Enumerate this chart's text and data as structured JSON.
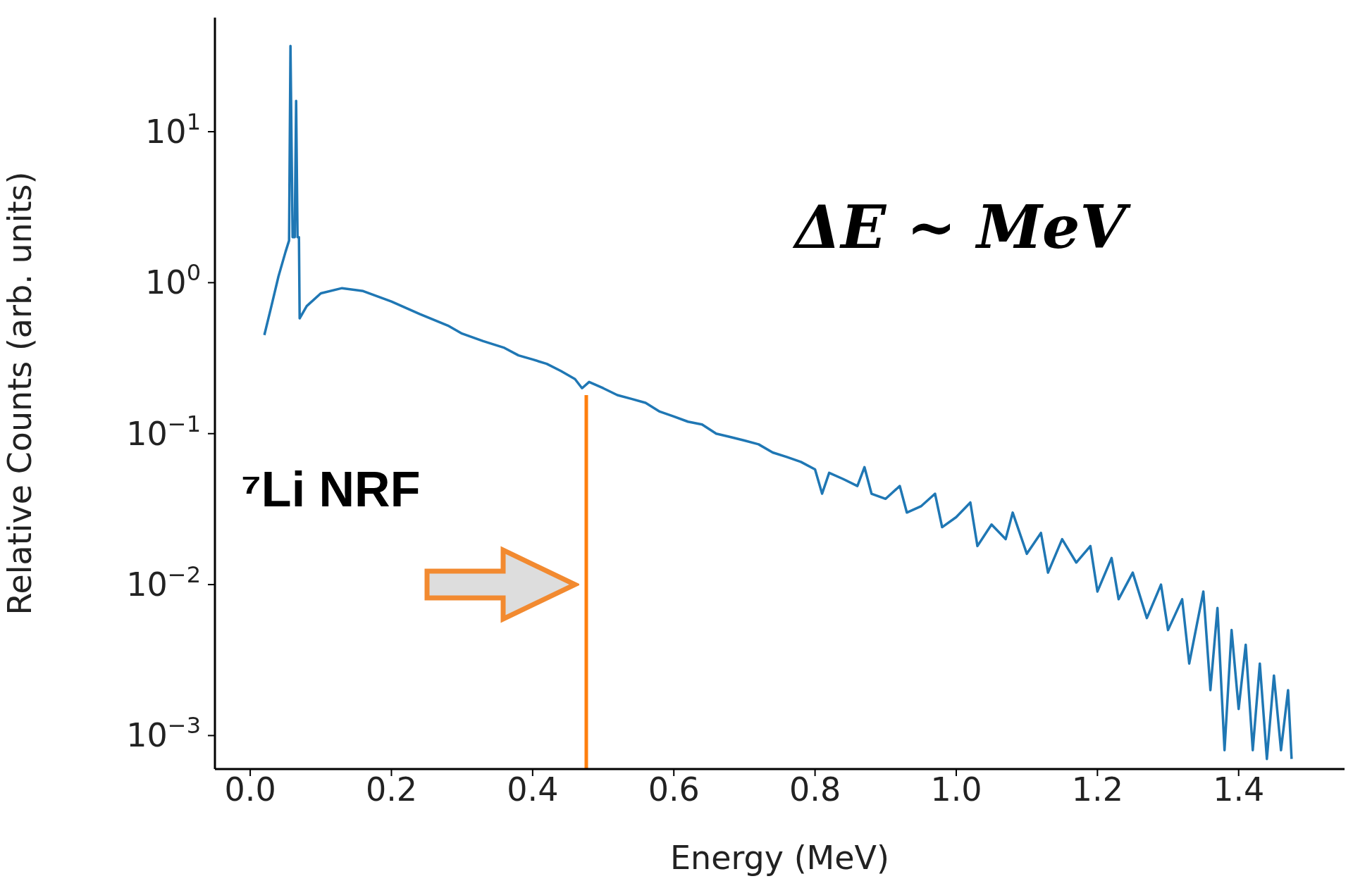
{
  "chart_data": {
    "type": "line",
    "xlabel": "Energy (MeV)",
    "ylabel": "Relative Counts (arb. units)",
    "log": "y",
    "marker": "none",
    "line_style": "solid",
    "xlim": [
      -0.05,
      1.55
    ],
    "ylim": [
      0.0006,
      57
    ],
    "xticks": [
      {
        "value": 0,
        "label": "0.0"
      },
      0.2,
      0.4,
      0.6,
      0.8,
      {
        "value": 1,
        "label": "1.0"
      },
      1.2,
      1.4
    ],
    "yticks": [
      {
        "value": 0.001,
        "label": "10$^{−3}$"
      },
      {
        "value": 0.01,
        "label": "10$^{−2}$"
      },
      {
        "value": 0.1,
        "label": "10$^{−1}$"
      },
      {
        "value": 1,
        "label": "10$^{0}$"
      },
      {
        "value": 10,
        "label": "10$^{1}$"
      }
    ],
    "series": [
      {
        "color": "#1f77b4",
        "x": [
          0.02,
          0.03,
          0.04,
          0.05,
          0.055,
          0.057,
          0.06,
          0.063,
          0.065,
          0.067,
          0.069,
          0.07,
          0.08,
          0.1,
          0.13,
          0.16,
          0.2,
          0.24,
          0.28,
          0.3,
          0.33,
          0.36,
          0.38,
          0.4,
          0.42,
          0.44,
          0.46,
          0.47,
          0.48,
          0.5,
          0.52,
          0.54,
          0.56,
          0.58,
          0.6,
          0.62,
          0.64,
          0.66,
          0.68,
          0.7,
          0.72,
          0.74,
          0.76,
          0.78,
          0.8,
          0.81,
          0.82,
          0.84,
          0.86,
          0.87,
          0.88,
          0.9,
          0.92,
          0.93,
          0.95,
          0.97,
          0.98,
          1.0,
          1.02,
          1.03,
          1.05,
          1.07,
          1.08,
          1.1,
          1.12,
          1.13,
          1.15,
          1.17,
          1.19,
          1.2,
          1.22,
          1.23,
          1.25,
          1.27,
          1.29,
          1.3,
          1.32,
          1.33,
          1.35,
          1.36,
          1.37,
          1.38,
          1.39,
          1.4,
          1.41,
          1.42,
          1.43,
          1.44,
          1.45,
          1.46,
          1.47,
          1.475
        ],
        "values": [
          0.45,
          0.7,
          1.1,
          1.6,
          1.9,
          37,
          2.0,
          2.0,
          16,
          2.0,
          2.0,
          0.58,
          0.7,
          0.85,
          0.92,
          0.88,
          0.75,
          0.62,
          0.52,
          0.46,
          0.41,
          0.37,
          0.33,
          0.31,
          0.29,
          0.26,
          0.23,
          0.2,
          0.22,
          0.2,
          0.18,
          0.17,
          0.16,
          0.14,
          0.13,
          0.12,
          0.115,
          0.1,
          0.095,
          0.09,
          0.085,
          0.075,
          0.07,
          0.065,
          0.058,
          0.04,
          0.055,
          0.05,
          0.045,
          0.06,
          0.04,
          0.037,
          0.045,
          0.03,
          0.033,
          0.04,
          0.024,
          0.028,
          0.035,
          0.018,
          0.025,
          0.02,
          0.03,
          0.016,
          0.022,
          0.012,
          0.02,
          0.014,
          0.018,
          0.009,
          0.015,
          0.008,
          0.012,
          0.006,
          0.01,
          0.005,
          0.008,
          0.003,
          0.009,
          0.002,
          0.007,
          0.0008,
          0.005,
          0.0015,
          0.004,
          0.0008,
          0.003,
          0.0007,
          0.0025,
          0.0008,
          0.002,
          0.0007
        ]
      },
      {
        "color": "#ff7f0e",
        "x": [
          0.476,
          0.476
        ],
        "values": [
          0.0006,
          0.18
        ]
      }
    ],
    "annotations": [
      "⁷Li NRF",
      "ΔE ~ MeV"
    ]
  }
}
